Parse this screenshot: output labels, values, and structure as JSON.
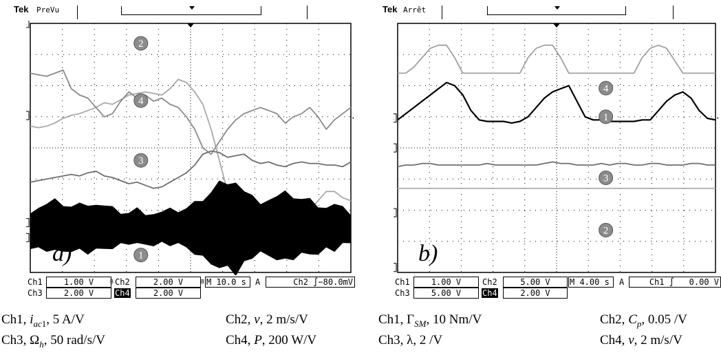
{
  "scope_a": {
    "brand": "Tek",
    "mode": "PreVu",
    "panel_label": "a)",
    "readout_row1": [
      "Ch1",
      "1.00 V",
      "Ch2",
      "2.00 V",
      "M 10.0 s",
      "A",
      "Ch2 ∫−80.0mV"
    ],
    "readout_row2": [
      "Ch3",
      "2.00 V",
      "Ch4",
      "2.00 V"
    ],
    "readout_b_flags": [
      "B",
      "B"
    ],
    "channel_markers": [
      "4",
      "2",
      "1",
      "3"
    ],
    "trace_badges": [
      "2",
      "4",
      "3",
      "1"
    ],
    "captions": {
      "l1": [
        "Ch1, ",
        "i",
        "ac",
        "1",
        ", 5 A/V"
      ],
      "l2": [
        "Ch3, Ω",
        "h",
        ", 50 rad/s/V"
      ],
      "r1": [
        "Ch2, ",
        "v",
        ", 2 m/s/V"
      ],
      "r2": [
        "Ch4, ",
        "P",
        ", 200 W/V"
      ]
    }
  },
  "scope_b": {
    "brand": "Tek",
    "mode": "Arrêt",
    "panel_label": "b)",
    "readout_row1": [
      "Ch1",
      "1.00 V",
      "Ch2",
      "5.00 V",
      "M 4.00 s",
      "A",
      "Ch1 ∫   0.00 V"
    ],
    "readout_row2": [
      "Ch3",
      "5.00 V",
      "Ch4",
      "2.00 V"
    ],
    "channel_markers": [
      "4",
      "1",
      "3",
      "2"
    ],
    "trace_badges": [
      "4",
      "1",
      "3",
      "2"
    ],
    "captions": {
      "l1": [
        "Ch1, Γ",
        "SM",
        ", 10 Nm/V"
      ],
      "l2": [
        "Ch3, λ, 2 /V"
      ],
      "r1": [
        "Ch2, ",
        "C",
        "p",
        ", 0.05 /V"
      ],
      "r2": [
        "Ch4, ",
        "v",
        ", 2 m/s/V"
      ]
    }
  },
  "chart_data": [
    {
      "type": "line",
      "title": "",
      "x": {
        "divisions": 10,
        "unit_per_div": "10.0 s"
      },
      "y": {
        "divisions": 8
      },
      "grid": true,
      "series": [
        {
          "name": "2",
          "color": "#a8a8a8",
          "values": [
            4.7,
            4.65,
            4.7,
            4.8,
            4.95,
            5.05,
            5.1,
            5.2,
            5.3,
            5.45,
            5.4,
            5.55,
            5.7,
            5.75,
            5.8,
            5.75,
            5.7,
            5.9,
            6.2,
            6.1,
            5.8,
            5.4,
            4.6,
            3.6,
            2.6,
            1.9,
            1.7,
            2.0,
            1.6,
            1.5,
            1.8,
            2.2,
            2.1,
            1.8,
            2.0,
            2.3,
            2.6,
            2.6,
            2.4,
            2.3
          ]
        },
        {
          "name": "4",
          "color": "#8a8a8a",
          "values": [
            6.4,
            6.35,
            6.3,
            6.4,
            6.5,
            5.9,
            5.7,
            5.6,
            5.3,
            5.0,
            5.1,
            5.5,
            5.8,
            5.6,
            5.7,
            5.5,
            5.6,
            5.4,
            5.3,
            5.0,
            4.6,
            4.0,
            3.8,
            4.2,
            4.6,
            4.9,
            5.1,
            5.2,
            5.3,
            5.2,
            5.1,
            4.8,
            5.0,
            5.1,
            5.3,
            5.0,
            4.6,
            4.9,
            5.1,
            5.3
          ]
        },
        {
          "name": "3",
          "color": "#6e6e6e",
          "values": [
            2.9,
            2.95,
            3.0,
            3.05,
            3.1,
            3.15,
            3.1,
            3.2,
            3.25,
            3.1,
            3.05,
            2.95,
            2.85,
            2.9,
            2.8,
            2.7,
            2.75,
            2.9,
            3.05,
            3.2,
            3.45,
            3.8,
            3.9,
            3.85,
            3.7,
            3.75,
            3.8,
            3.6,
            3.5,
            3.55,
            3.45,
            3.4,
            3.5,
            3.55,
            3.5,
            3.5,
            3.45,
            3.45,
            3.4,
            3.55
          ]
        },
        {
          "name": "1",
          "color": "#000000",
          "envelope": true,
          "center": 1.4,
          "values": [
            0.6,
            0.7,
            0.75,
            0.85,
            0.8,
            0.7,
            0.75,
            0.85,
            0.8,
            0.7,
            0.6,
            0.55,
            0.5,
            0.6,
            0.55,
            0.5,
            0.5,
            0.55,
            0.6,
            0.65,
            0.8,
            1.0,
            1.2,
            1.5,
            1.3,
            1.55,
            1.2,
            1.0,
            0.9,
            0.95,
            1.0,
            1.1,
            1.05,
            0.95,
            0.9,
            0.8,
            0.7,
            0.75,
            0.6,
            0.5
          ]
        }
      ]
    },
    {
      "type": "line",
      "title": "",
      "x": {
        "divisions": 10,
        "unit_per_div": "4.00 s"
      },
      "y": {
        "divisions": 8
      },
      "grid": true,
      "series": [
        {
          "name": "4",
          "color": "#a0a0a0",
          "values": [
            6.4,
            6.4,
            6.6,
            6.9,
            7.2,
            7.3,
            7.3,
            6.9,
            6.4,
            6.4,
            6.4,
            6.4,
            6.4,
            6.4,
            6.4,
            6.4,
            6.9,
            7.2,
            7.3,
            7.3,
            6.9,
            6.4,
            6.4,
            6.4,
            6.4,
            6.4,
            6.4,
            6.4,
            6.4,
            6.4,
            6.9,
            7.2,
            7.3,
            7.2,
            6.8,
            6.4,
            6.4,
            6.4,
            6.4,
            6.4
          ]
        },
        {
          "name": "1",
          "color": "#000000",
          "values": [
            4.9,
            5.1,
            5.3,
            5.5,
            5.7,
            5.9,
            6.1,
            6.0,
            5.7,
            5.2,
            4.9,
            4.85,
            4.85,
            4.85,
            4.8,
            4.85,
            5.0,
            5.3,
            5.6,
            5.8,
            5.9,
            6.0,
            5.5,
            5.0,
            4.9,
            4.9,
            4.85,
            4.85,
            4.85,
            4.85,
            4.9,
            4.9,
            5.2,
            5.5,
            5.7,
            5.8,
            5.6,
            5.2,
            4.95,
            4.9
          ]
        },
        {
          "name": "3",
          "color": "#6e6e6e",
          "values": [
            3.4,
            3.45,
            3.45,
            3.5,
            3.5,
            3.45,
            3.45,
            3.45,
            3.45,
            3.45,
            3.45,
            3.5,
            3.45,
            3.45,
            3.45,
            3.45,
            3.45,
            3.45,
            3.5,
            3.55,
            3.5,
            3.5,
            3.45,
            3.45,
            3.45,
            3.5,
            3.45,
            3.5,
            3.5,
            3.45,
            3.45,
            3.5,
            3.5,
            3.45,
            3.45,
            3.45,
            3.5,
            3.5,
            3.45,
            3.45
          ]
        },
        {
          "name": "2",
          "color": "#b0b0b0",
          "values": [
            2.7,
            2.7,
            2.7,
            2.7,
            2.7,
            2.7,
            2.7,
            2.7,
            2.7,
            2.7,
            2.7,
            2.7,
            2.7,
            2.7,
            2.7,
            2.7,
            2.7,
            2.7,
            2.7,
            2.7,
            2.7,
            2.7,
            2.7,
            2.7,
            2.7,
            2.7,
            2.7,
            2.7,
            2.7,
            2.7,
            2.7,
            2.7,
            2.7,
            2.7,
            2.7,
            2.7,
            2.7,
            2.7,
            2.7,
            2.7
          ]
        }
      ]
    }
  ]
}
